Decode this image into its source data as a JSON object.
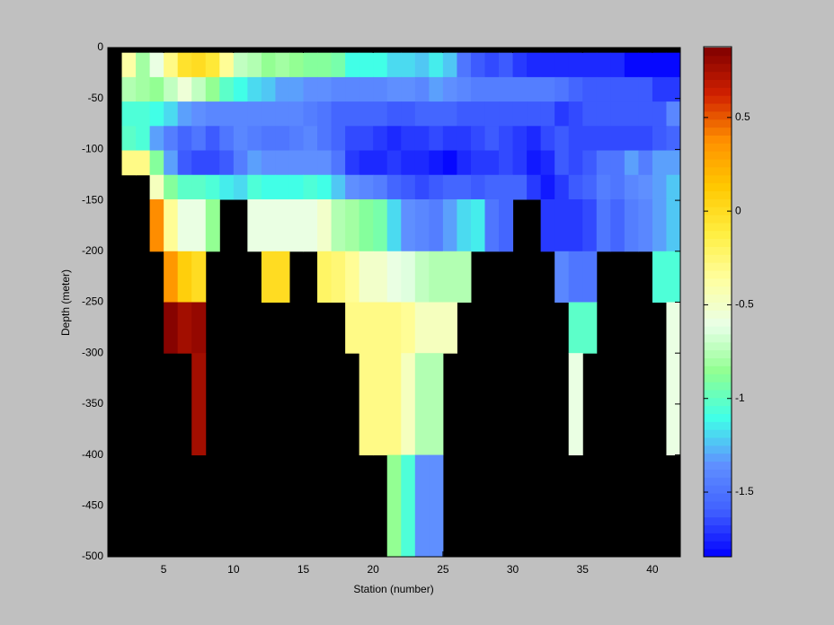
{
  "chart_data": {
    "type": "heatmap",
    "x_label": "Station (number)",
    "y_label": "Depth (meter)",
    "xlim": [
      1,
      42
    ],
    "xticks": [
      5,
      10,
      15,
      20,
      25,
      30,
      35,
      40
    ],
    "ylim": [
      -500,
      0
    ],
    "yticks": [
      -500,
      -450,
      -400,
      -350,
      -300,
      -250,
      -200,
      -150,
      -100,
      -50,
      0
    ],
    "clim": [
      -1.845,
      0.873
    ],
    "cticks": [
      -1.5,
      -1,
      -0.5,
      0,
      0.5
    ],
    "colormap": [
      "#0000ff",
      "#4060ff",
      "#6090ff",
      "#40ffe8",
      "#90ff90",
      "#e8ffe8",
      "#ffffa0",
      "#ffee40",
      "#ffc800",
      "#ff9000",
      "#d02000",
      "#800000"
    ],
    "missing_color": "#000000",
    "x_edges": [
      2,
      3,
      4,
      5,
      6,
      7,
      8,
      9,
      10,
      11,
      12,
      13,
      14,
      15,
      16,
      17,
      18,
      19,
      20,
      21,
      22,
      23,
      24,
      25,
      26,
      27,
      28,
      29,
      30,
      31,
      32,
      33,
      34,
      35,
      36,
      37,
      38,
      39,
      40,
      41,
      42
    ],
    "y_edges": [
      -5,
      -29,
      -53,
      -77,
      -101,
      -125,
      -149,
      -200,
      -250,
      -300,
      -400,
      -500
    ],
    "values": [
      [
        -0.4,
        -0.8,
        -0.6,
        -0.3,
        -0.05,
        0,
        -0.1,
        -0.35,
        -0.7,
        -0.75,
        -0.85,
        -0.8,
        -0.85,
        -0.9,
        -0.9,
        -0.95,
        -1.1,
        -1.1,
        -1.1,
        -1.2,
        -1.2,
        -1.25,
        -1.15,
        -1.25,
        -1.5,
        -1.6,
        -1.65,
        -1.6,
        -1.7,
        -1.75,
        -1.75,
        -1.75,
        -1.75,
        -1.75,
        -1.75,
        -1.75,
        -1.85,
        -1.85,
        -1.85,
        -1.85
      ],
      [
        -0.75,
        -0.8,
        -0.85,
        -0.7,
        -0.55,
        -0.7,
        -0.85,
        -1.0,
        -1.1,
        -1.2,
        -1.25,
        -1.3,
        -1.3,
        -1.35,
        -1.35,
        -1.4,
        -1.4,
        -1.4,
        -1.4,
        -1.35,
        -1.35,
        -1.4,
        -1.3,
        -1.35,
        -1.4,
        -1.45,
        -1.45,
        -1.45,
        -1.45,
        -1.45,
        -1.45,
        -1.5,
        -1.55,
        -1.6,
        -1.6,
        -1.6,
        -1.6,
        -1.6,
        -1.7,
        -1.7
      ],
      [
        -1.05,
        -1.05,
        -1.1,
        -1.2,
        -1.3,
        -1.35,
        -1.4,
        -1.4,
        -1.4,
        -1.4,
        -1.4,
        -1.4,
        -1.4,
        -1.45,
        -1.5,
        -1.55,
        -1.55,
        -1.55,
        -1.55,
        -1.6,
        -1.6,
        -1.55,
        -1.55,
        -1.55,
        -1.6,
        -1.6,
        -1.6,
        -1.6,
        -1.6,
        -1.6,
        -1.6,
        -1.7,
        -1.65,
        -1.6,
        -1.6,
        -1.6,
        -1.6,
        -1.6,
        -1.6,
        -1.4
      ],
      [
        -1.0,
        -1.05,
        -1.3,
        -1.45,
        -1.55,
        -1.5,
        -1.6,
        -1.5,
        -1.4,
        -1.45,
        -1.5,
        -1.5,
        -1.45,
        -1.4,
        -1.5,
        -1.55,
        -1.65,
        -1.65,
        -1.7,
        -1.75,
        -1.7,
        -1.7,
        -1.65,
        -1.7,
        -1.7,
        -1.65,
        -1.6,
        -1.65,
        -1.7,
        -1.75,
        -1.65,
        -1.6,
        -1.65,
        -1.65,
        -1.65,
        -1.65,
        -1.65,
        -1.65,
        -1.6,
        -1.55
      ],
      [
        -0.3,
        -0.3,
        -0.9,
        -1.3,
        -1.6,
        -1.65,
        -1.65,
        -1.6,
        -1.45,
        -1.3,
        -1.35,
        -1.35,
        -1.35,
        -1.35,
        -1.35,
        -1.5,
        -1.7,
        -1.75,
        -1.75,
        -1.7,
        -1.75,
        -1.75,
        -1.8,
        -1.85,
        -1.75,
        -1.7,
        -1.7,
        -1.65,
        -1.7,
        -1.8,
        -1.75,
        -1.6,
        -1.65,
        -1.6,
        -1.5,
        -1.5,
        -1.3,
        -1.45,
        -1.3,
        -1.3
      ],
      [
        null,
        null,
        -0.45,
        -0.9,
        -1.0,
        -1.0,
        -1.05,
        -1.15,
        -1.2,
        -1.05,
        -1.1,
        -1.1,
        -1.1,
        -1.05,
        -1.1,
        -1.25,
        -1.35,
        -1.4,
        -1.45,
        -1.55,
        -1.6,
        -1.65,
        -1.6,
        -1.55,
        -1.55,
        -1.6,
        -1.55,
        -1.55,
        -1.55,
        -1.7,
        -1.8,
        -1.7,
        -1.6,
        -1.55,
        -1.45,
        -1.5,
        -1.4,
        -1.35,
        -1.3,
        -1.25
      ],
      [
        null,
        null,
        0.4,
        -0.35,
        -0.6,
        -0.6,
        -0.85,
        null,
        null,
        -0.6,
        -0.6,
        -0.6,
        -0.6,
        -0.6,
        -0.5,
        -0.75,
        -0.8,
        -0.9,
        -0.95,
        -1.2,
        -1.35,
        -1.4,
        -1.45,
        -1.3,
        -1.2,
        -1.15,
        -1.5,
        -1.55,
        null,
        null,
        -1.7,
        -1.7,
        -1.7,
        -1.65,
        -1.5,
        -1.55,
        -1.45,
        -1.4,
        -1.3,
        -1.25
      ],
      [
        null,
        null,
        null,
        0.35,
        0.1,
        0,
        null,
        null,
        null,
        null,
        0,
        0,
        null,
        null,
        -0.2,
        -0.25,
        -0.35,
        -0.5,
        -0.5,
        -0.6,
        -0.65,
        -0.7,
        -0.75,
        -0.75,
        -0.75,
        null,
        null,
        null,
        null,
        null,
        null,
        -1.4,
        -1.5,
        -1.5,
        null,
        null,
        null,
        null,
        -1.05,
        -1.05
      ],
      [
        null,
        null,
        null,
        0.85,
        0.75,
        0.8,
        null,
        null,
        null,
        null,
        null,
        null,
        null,
        null,
        null,
        null,
        -0.3,
        -0.3,
        -0.3,
        -0.3,
        -0.35,
        -0.45,
        -0.45,
        -0.45,
        null,
        null,
        null,
        null,
        null,
        null,
        null,
        null,
        -1.0,
        -1.0,
        null,
        null,
        null,
        null,
        null,
        -0.6
      ],
      [
        null,
        null,
        null,
        null,
        null,
        0.75,
        null,
        null,
        null,
        null,
        null,
        null,
        null,
        null,
        null,
        null,
        null,
        -0.3,
        -0.3,
        -0.3,
        -0.45,
        -0.75,
        -0.75,
        null,
        null,
        null,
        null,
        null,
        null,
        null,
        null,
        null,
        -0.6,
        null,
        null,
        null,
        null,
        null,
        null,
        -0.6
      ],
      [
        null,
        null,
        null,
        null,
        null,
        null,
        null,
        null,
        null,
        null,
        null,
        null,
        null,
        null,
        null,
        null,
        null,
        null,
        null,
        -0.85,
        -1.05,
        -1.35,
        -1.35,
        null,
        null,
        null,
        null,
        null,
        null,
        null,
        null,
        null,
        null,
        null,
        null,
        null,
        null,
        null,
        null,
        null
      ]
    ]
  }
}
